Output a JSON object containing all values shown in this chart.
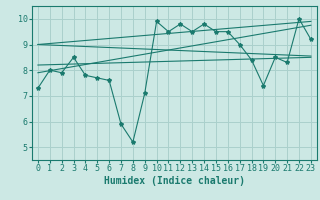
{
  "x": [
    0,
    1,
    2,
    3,
    4,
    5,
    6,
    7,
    8,
    9,
    10,
    11,
    12,
    13,
    14,
    15,
    16,
    17,
    18,
    19,
    20,
    21,
    22,
    23
  ],
  "y": [
    7.3,
    8.0,
    7.9,
    8.5,
    7.8,
    7.7,
    7.6,
    5.9,
    5.2,
    7.1,
    9.9,
    9.5,
    9.8,
    9.5,
    9.8,
    9.5,
    9.5,
    9.0,
    8.4,
    7.4,
    8.5,
    8.3,
    10.0,
    9.2
  ],
  "line_color": "#1a7a6e",
  "marker": "*",
  "marker_size": 3,
  "bg_color": "#cce8e4",
  "grid_color": "#aad0cc",
  "xlabel": "Humidex (Indice chaleur)",
  "xlabel_fontsize": 7,
  "tick_fontsize": 6,
  "xlim": [
    -0.5,
    23.5
  ],
  "ylim": [
    4.5,
    10.5
  ],
  "yticks": [
    5,
    6,
    7,
    8,
    9,
    10
  ],
  "xticks": [
    0,
    1,
    2,
    3,
    4,
    5,
    6,
    7,
    8,
    9,
    10,
    11,
    12,
    13,
    14,
    15,
    16,
    17,
    18,
    19,
    20,
    21,
    22,
    23
  ],
  "trend1_x": [
    0,
    23
  ],
  "trend1_y": [
    9.0,
    8.55
  ],
  "trend2_x": [
    0,
    23
  ],
  "trend2_y": [
    7.9,
    9.75
  ],
  "trend3_x": [
    0,
    23
  ],
  "trend3_y": [
    9.0,
    9.9
  ],
  "trend4_x": [
    0,
    23
  ],
  "trend4_y": [
    8.2,
    8.5
  ]
}
